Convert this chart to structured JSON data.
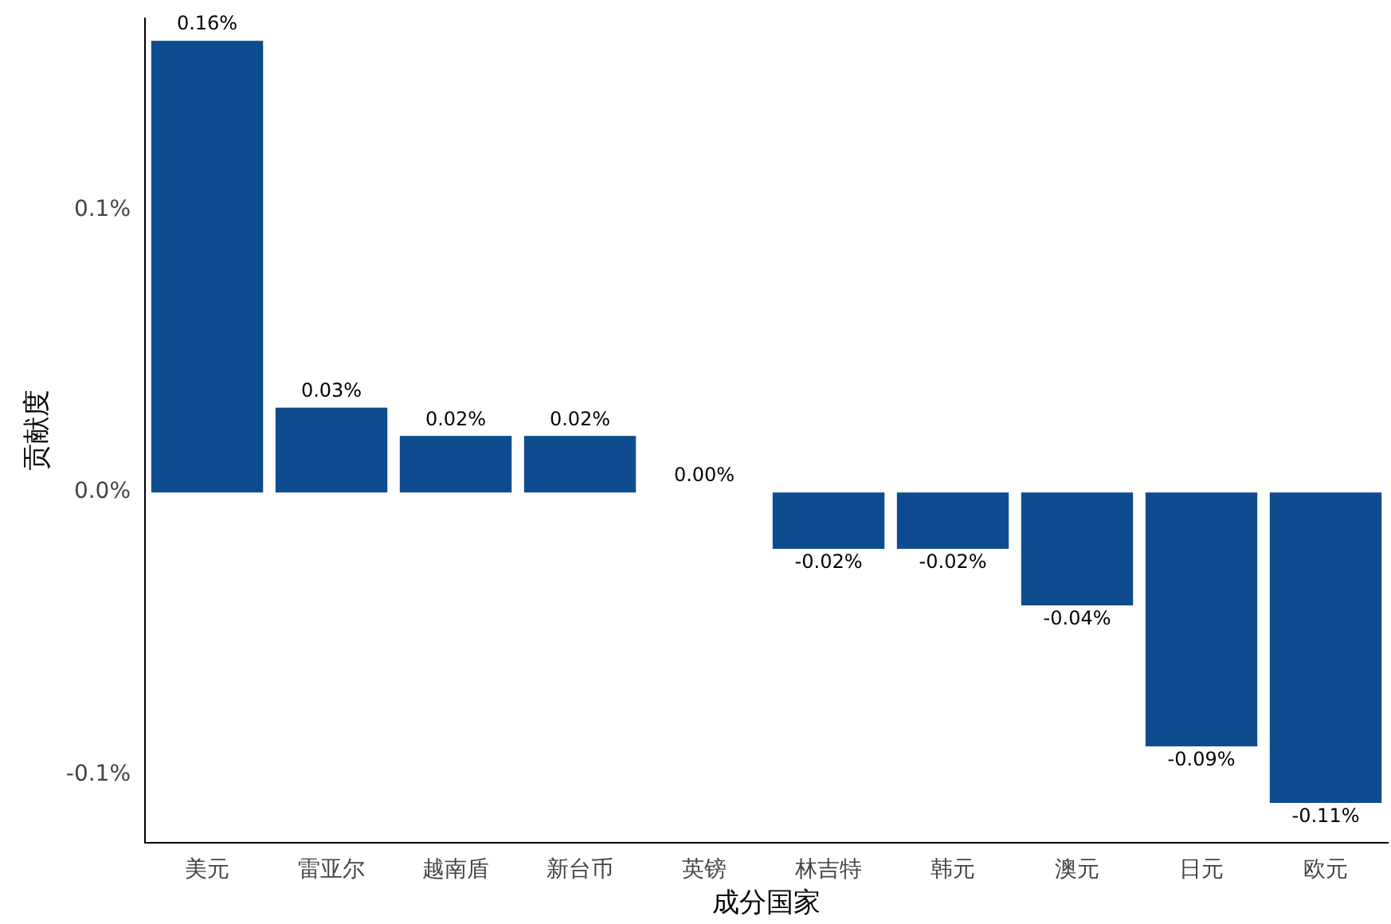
{
  "chart_data": {
    "type": "bar",
    "xlabel": "成分国家",
    "ylabel": "贡献度",
    "categories": [
      "美元",
      "雷亚尔",
      "越南盾",
      "新台币",
      "英镑",
      "林吉特",
      "韩元",
      "澳元",
      "日元",
      "欧元"
    ],
    "values": [
      0.16,
      0.03,
      0.02,
      0.02,
      0.0,
      -0.02,
      -0.02,
      -0.04,
      -0.09,
      -0.11
    ],
    "value_labels": [
      "0.16%",
      "0.03%",
      "0.02%",
      "0.02%",
      "0.00%",
      "-0.02%",
      "-0.02%",
      "-0.04%",
      "-0.09%",
      "-0.11%"
    ],
    "color": "#0f4c8f",
    "ylim": [
      -0.124,
      0.168
    ],
    "yticks": [
      {
        "value": -0.1,
        "label": "-0.1%"
      },
      {
        "value": 0,
        "label": "0.0%"
      },
      {
        "value": 0.1,
        "label": "0.1%"
      }
    ],
    "grid": false,
    "legend": false
  }
}
